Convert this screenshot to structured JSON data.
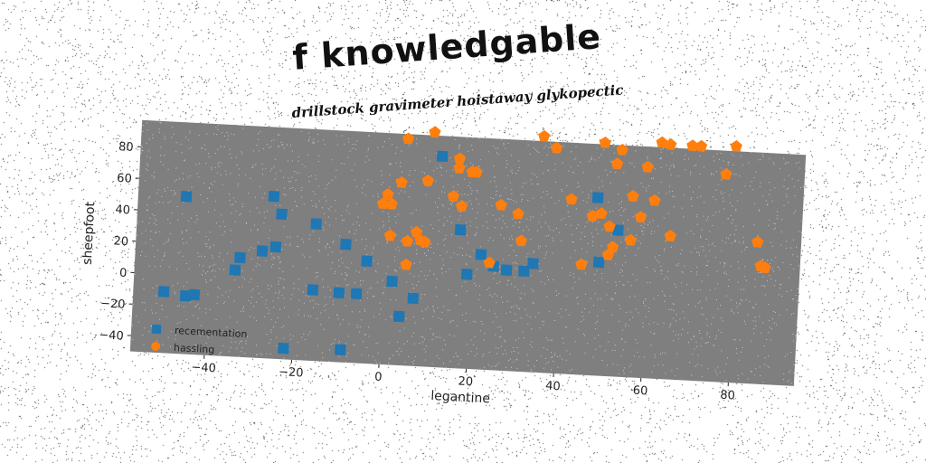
{
  "title": "f knowledgable",
  "subtitle": "drillstock gravimeter hoistaway glykopectic",
  "colors": {
    "plot_bg": "#7f7f7f",
    "series_a": "#1f77b4",
    "series_b": "#ff7f0e"
  },
  "chart_data": {
    "type": "scatter",
    "xlabel": "legantine",
    "ylabel": "sheepfoot",
    "xlim": [
      -57,
      95
    ],
    "ylim": [
      -50,
      97
    ],
    "xticks": [
      "-40",
      "-20",
      "0",
      "20",
      "40",
      "60",
      "80"
    ],
    "yticks": [
      "-40",
      "-20",
      "0",
      "20",
      "40",
      "60",
      "80"
    ],
    "legend_position": "lower-left",
    "series": [
      {
        "name": "recementation",
        "marker": "square",
        "points": [
          [
            -50,
            -11
          ],
          [
            -46,
            50
          ],
          [
            -45,
            -13
          ],
          [
            -43,
            -12
          ],
          [
            -34,
            5
          ],
          [
            -33,
            13
          ],
          [
            -28,
            18
          ],
          [
            -26,
            53
          ],
          [
            -25,
            21
          ],
          [
            -24,
            42
          ],
          [
            -22,
            -43
          ],
          [
            -16,
            37
          ],
          [
            -16,
            -5
          ],
          [
            -10,
            -6
          ],
          [
            -9,
            25
          ],
          [
            -9,
            -42
          ],
          [
            -6,
            -6
          ],
          [
            -4,
            15
          ],
          [
            2,
            3
          ],
          [
            4,
            -19
          ],
          [
            7,
            -7
          ],
          [
            12,
            84
          ],
          [
            17,
            38
          ],
          [
            19,
            10
          ],
          [
            22,
            23
          ],
          [
            25,
            16
          ],
          [
            28,
            14
          ],
          [
            32,
            14
          ],
          [
            34,
            19
          ],
          [
            48,
            63
          ],
          [
            49,
            22
          ],
          [
            53,
            43
          ]
        ]
      },
      {
        "name": "hassling",
        "marker": "pentagon",
        "points": [
          [
            -1,
            52
          ],
          [
            0,
            58
          ],
          [
            1,
            52
          ],
          [
            1,
            32
          ],
          [
            3,
            66
          ],
          [
            4,
            94
          ],
          [
            5,
            29
          ],
          [
            5,
            14
          ],
          [
            7,
            35
          ],
          [
            8,
            30
          ],
          [
            9,
            68
          ],
          [
            9,
            29
          ],
          [
            10,
            99
          ],
          [
            15,
            59
          ],
          [
            16,
            83
          ],
          [
            16,
            77
          ],
          [
            17,
            53
          ],
          [
            19,
            75
          ],
          [
            20,
            75
          ],
          [
            24,
            18
          ],
          [
            26,
            55
          ],
          [
            30,
            50
          ],
          [
            31,
            33
          ],
          [
            35,
            100
          ],
          [
            38,
            93
          ],
          [
            42,
            61
          ],
          [
            45,
            20
          ],
          [
            47,
            51
          ],
          [
            49,
            53
          ],
          [
            49,
            98
          ],
          [
            51,
            45
          ],
          [
            51,
            27
          ],
          [
            52,
            32
          ],
          [
            52,
            85
          ],
          [
            53,
            94
          ],
          [
            56,
            37
          ],
          [
            56,
            65
          ],
          [
            58,
            52
          ],
          [
            59,
            84
          ],
          [
            61,
            63
          ],
          [
            62,
            100
          ],
          [
            64,
            99
          ],
          [
            65,
            41
          ],
          [
            69,
            99
          ],
          [
            71,
            99
          ],
          [
            77,
            82
          ],
          [
            79,
            100
          ],
          [
            85,
            40
          ],
          [
            86,
            25
          ],
          [
            87,
            24
          ]
        ]
      }
    ]
  }
}
